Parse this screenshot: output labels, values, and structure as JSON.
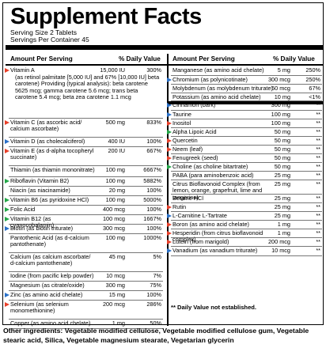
{
  "title": "Supplement Facts",
  "serving_size": "Serving Size 2 Tablets",
  "servings_per_container": "Servings Per Container 45",
  "col_amount": "Amount Per Serving",
  "col_dv": "% Daily Value",
  "colors": {
    "red": "#e8402a",
    "green": "#23a848",
    "blue": "#2a70c8"
  },
  "left_rows": [
    {
      "name": "Vitamin A",
      "amount": "15,000 IU",
      "dv": "300%",
      "color": "red",
      "details": "(as retinol palmitate [5,000 IU] and 67% [10,000 IU] beta carotene) Providing (typical analysis): beta carotene 5625 mcg; gamma carotene 5.6 mcg; trans beta carotene 5.4 mcg; beta zea carotene 1.1 mcg"
    },
    {
      "name": "Vitamin C (as ascorbic acid/ calcium ascorbate)",
      "amount": "500 mg",
      "dv": "833%",
      "color": "red"
    },
    {
      "name": "Vitamin D (as cholecalciferol)",
      "amount": "400 IU",
      "dv": "100%",
      "color": "blue"
    },
    {
      "name": "Vitamin E (as d-alpha tocopheryl succinate)",
      "amount": "200 IU",
      "dv": "667%",
      "color": "red"
    },
    {
      "name": "Thiamin (as thiamin mononitrate)",
      "amount": "100 mg",
      "dv": "6667%",
      "color": ""
    },
    {
      "name": "Riboflavin (Vitamin B2)",
      "amount": "100 mg",
      "dv": "5882%",
      "color": "green"
    },
    {
      "name": "Niacin (as niacinamide)",
      "amount": "20 mg",
      "dv": "100%",
      "color": ""
    },
    {
      "name": "Vitamin B6 (as pyridoxine HCl)",
      "amount": "100 mg",
      "dv": "5000%",
      "color": "green"
    },
    {
      "name": "Folic Acid",
      "amount": "400 mcg",
      "dv": "100%",
      "color": "green"
    },
    {
      "name": "Vitamin B12 (as cyanocobalamin)",
      "amount": "100 mcg",
      "dv": "1667%",
      "color": "green"
    },
    {
      "name": "Biotin (as biotin triturate)",
      "amount": "300 mcg",
      "dv": "100%",
      "color": "blue"
    },
    {
      "name": "Pantothenic Acid (as d-calcium pantothenate)",
      "amount": "100 mg",
      "dv": "1000%",
      "color": ""
    },
    {
      "name": "Calcium (as calcium ascorbate/ d-calcium pantothenate)",
      "amount": "45 mg",
      "dv": "5%",
      "color": ""
    },
    {
      "name": "Iodine (from pacific kelp powder)",
      "amount": "10 mcg",
      "dv": "7%",
      "color": ""
    },
    {
      "name": "Magnesium (as citrate/oxide)",
      "amount": "300 mg",
      "dv": "75%",
      "color": ""
    },
    {
      "name": "Zinc (as amino acid chelate)",
      "amount": "15 mg",
      "dv": "100%",
      "color": "blue"
    },
    {
      "name": "Selenium (as selenium monomethionine)",
      "amount": "200 mcg",
      "dv": "286%",
      "color": "red"
    },
    {
      "name": "Copper (as amino acid chelate)",
      "amount": "1 mg",
      "dv": "50%",
      "color": ""
    }
  ],
  "right_rows": [
    {
      "name": "Manganese (as amino acid chelate)",
      "amount": "5 mg",
      "dv": "250%",
      "color": ""
    },
    {
      "name": "Chromium (as polynicotinate)",
      "amount": "300 mcg",
      "dv": "250%",
      "color": "blue"
    },
    {
      "name": "Molybdenum (as molybdenum triturate)",
      "amount": "50 mcg",
      "dv": "67%",
      "color": ""
    },
    {
      "name": "Potassium (as amino acid chelate)",
      "amount": "10 mg",
      "dv": "<1%",
      "color": ""
    },
    {
      "name": "Cinnamon (bark)",
      "amount": "300 mg",
      "dv": "**",
      "color": "blue"
    },
    {
      "name": "Taurine",
      "amount": "100 mg",
      "dv": "**",
      "color": "blue"
    },
    {
      "name": "Inositol",
      "amount": "100 mg",
      "dv": "**",
      "color": "red"
    },
    {
      "name": "Alpha Lipoic Acid",
      "amount": "50 mg",
      "dv": "**",
      "color": "green"
    },
    {
      "name": "Quercetin",
      "amount": "50 mg",
      "dv": "**",
      "color": "red"
    },
    {
      "name": "Neem (leaf)",
      "amount": "50 mg",
      "dv": "**",
      "color": "red"
    },
    {
      "name": "Fenugreek (seed)",
      "amount": "50 mg",
      "dv": "**",
      "color": "red"
    },
    {
      "name": "Choline (as choline bitartrate)",
      "amount": "50 mg",
      "dv": "**",
      "color": "green"
    },
    {
      "name": "PABA (para aminobenzoic acid)",
      "amount": "25 mg",
      "dv": "**",
      "color": ""
    },
    {
      "name": "Citrus Bioflavonoid Complex (from lemon, orange, grapefruit, lime and tangerine)",
      "amount": "25 mg",
      "dv": "**",
      "color": ""
    },
    {
      "name": "Betaine HCl",
      "amount": "25 mg",
      "dv": "**",
      "color": ""
    },
    {
      "name": "Rutin",
      "amount": "25 mg",
      "dv": "**",
      "color": "red"
    },
    {
      "name": "L-Carnitine L-Tartrate",
      "amount": "25 mg",
      "dv": "**",
      "color": "blue"
    },
    {
      "name": "Boron (as amino acid chelate)",
      "amount": "1 mg",
      "dv": "**",
      "color": "red"
    },
    {
      "name": "Hesperidin (from citrus bioflavonoid complex)",
      "amount": "1 mg",
      "dv": "**",
      "color": "red"
    },
    {
      "name": "Lutein (from marigold)",
      "amount": "200 mcg",
      "dv": "**",
      "color": "red"
    },
    {
      "name": "Vanadium (as vanadium triturate)",
      "amount": "10 mcg",
      "dv": "**",
      "color": "blue"
    }
  ],
  "footnote": "** Daily Value not established.",
  "other_ingredients": "Other ingredients: Vegetable modified cellulose, Vegetable modified cellulose gum, Vegetable stearic acid, Silica, Vegetable magnesium stearate, Vegetarian glycerin"
}
